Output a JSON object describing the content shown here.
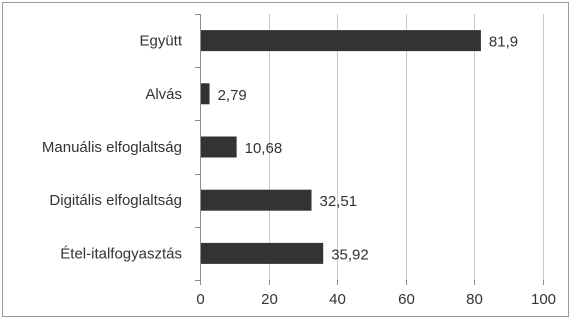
{
  "chart_data": {
    "type": "bar",
    "orientation": "horizontal",
    "categories": [
      "Együtt",
      "Alvás",
      "Manuális elfoglaltság",
      "Digitális elfoglaltság",
      "Étel-italfogyasztás"
    ],
    "values": [
      81.9,
      2.79,
      10.68,
      32.51,
      35.92
    ],
    "value_labels": [
      "81,9",
      "2,79",
      "10,68",
      "32,51",
      "35,92"
    ],
    "title": "",
    "xlabel": "",
    "ylabel": "",
    "xlim": [
      0,
      100
    ],
    "xticks": [
      0,
      20,
      40,
      60,
      80,
      100
    ],
    "xtick_labels": [
      "0",
      "20",
      "40",
      "60",
      "80",
      "100"
    ],
    "grid": true,
    "legend": "none",
    "colors": {
      "bar": "#333333",
      "grid": "#c8c8c8",
      "axis": "#8c8c8c",
      "text": "#333333"
    }
  }
}
